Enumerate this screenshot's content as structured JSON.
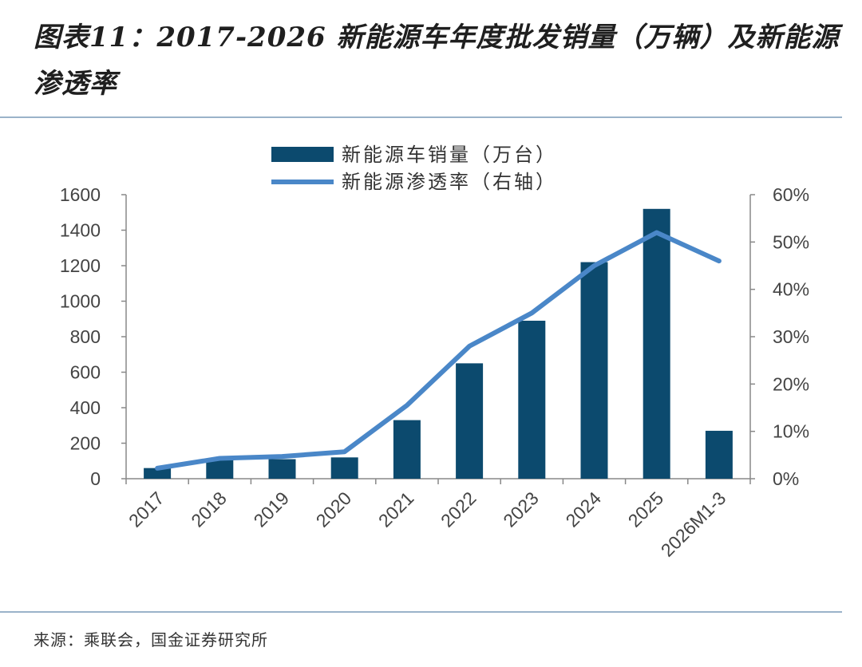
{
  "title": "图表11：2017-2026 新能源车年度批发销量（万辆）及新能源渗透率",
  "source": "来源：乘联会，国金证券研究所",
  "colors": {
    "bar": "#0c4a6e",
    "line": "#4a87c8",
    "rule": "#9ab3c9"
  },
  "chart_data": {
    "type": "bar",
    "categories": [
      "2017",
      "2018",
      "2019",
      "2020",
      "2021",
      "2022",
      "2023",
      "2024",
      "2025",
      "2026M1-3"
    ],
    "series": [
      {
        "name": "新能源车销量（万台）",
        "type": "bar",
        "axis": "left",
        "values": [
          60,
          110,
          110,
          120,
          330,
          650,
          890,
          1220,
          1520,
          270
        ]
      },
      {
        "name": "新能源渗透率（右轴）",
        "type": "line",
        "axis": "right",
        "values": [
          2.2,
          4.3,
          4.7,
          5.7,
          15.5,
          28,
          35,
          45,
          52,
          46
        ]
      }
    ],
    "y_left": {
      "range": [
        0,
        1600
      ],
      "ticks": [
        "0",
        "200",
        "400",
        "600",
        "800",
        "1000",
        "1200",
        "1400",
        "1600"
      ]
    },
    "y_right": {
      "range": [
        0,
        60
      ],
      "unit": "%",
      "ticks": [
        "0%",
        "10%",
        "20%",
        "30%",
        "40%",
        "50%",
        "60%"
      ]
    },
    "legend_position": "top-center",
    "grid": false
  }
}
